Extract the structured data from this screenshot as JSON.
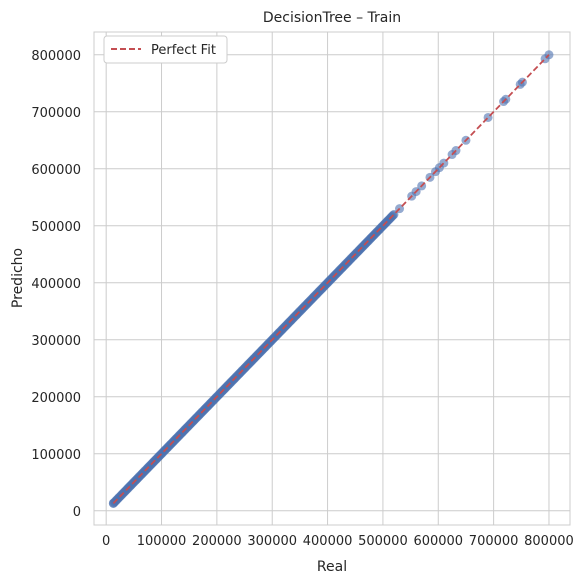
{
  "chart_data": {
    "type": "scatter",
    "title": "DecisionTree – Train",
    "xlabel": "Real",
    "ylabel": "Predicho",
    "xlim": [
      -22000,
      838000
    ],
    "ylim": [
      -25000,
      840000
    ],
    "xticks": [
      0,
      100000,
      200000,
      300000,
      400000,
      500000,
      600000,
      700000,
      800000
    ],
    "yticks": [
      0,
      100000,
      200000,
      300000,
      400000,
      500000,
      600000,
      700000,
      800000
    ],
    "xtick_labels": [
      "0",
      "100000",
      "200000",
      "300000",
      "400000",
      "500000",
      "600000",
      "700000",
      "800000"
    ],
    "ytick_labels": [
      "0",
      "100000",
      "200000",
      "300000",
      "400000",
      "500000",
      "600000",
      "700000",
      "800000"
    ],
    "grid": true,
    "legend": {
      "position": "top-left",
      "entries": [
        {
          "label": "Perfect Fit",
          "style": "dashed-line",
          "color": "#c44e52"
        }
      ]
    },
    "reference_line": {
      "label": "Perfect Fit",
      "from": [
        13000,
        13000
      ],
      "to": [
        800000,
        800000
      ],
      "color": "#c44e52"
    },
    "points_color": "#4c72b0",
    "points_dense_range": [
      13000,
      520000
    ],
    "points": [
      [
        13000,
        13000
      ],
      [
        530000,
        530000
      ],
      [
        552000,
        552000
      ],
      [
        560000,
        560000
      ],
      [
        570000,
        570000
      ],
      [
        585000,
        585000
      ],
      [
        595000,
        595000
      ],
      [
        602000,
        602000
      ],
      [
        610000,
        610000
      ],
      [
        625000,
        625000
      ],
      [
        632000,
        632000
      ],
      [
        650000,
        650000
      ],
      [
        690000,
        690000
      ],
      [
        718000,
        718000
      ],
      [
        722000,
        722000
      ],
      [
        748000,
        748000
      ],
      [
        752000,
        752000
      ],
      [
        793000,
        793000
      ],
      [
        800000,
        800000
      ]
    ]
  }
}
